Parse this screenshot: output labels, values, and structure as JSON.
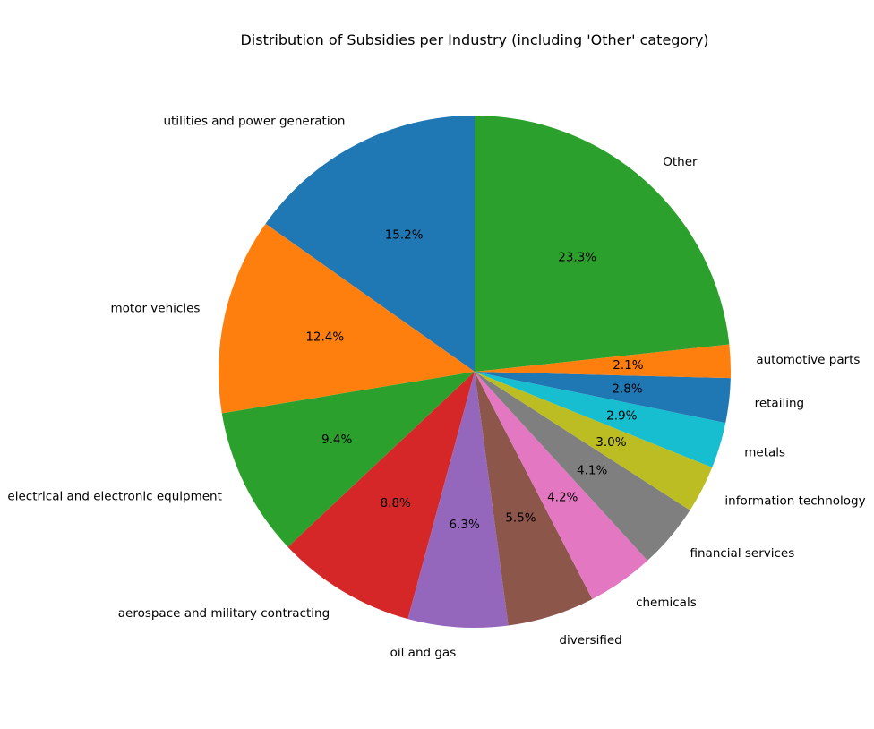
{
  "chart_data": {
    "type": "pie",
    "title": "Distribution of Subsidies per Industry (including 'Other' category)",
    "start_angle_deg": 90,
    "direction": "counterclockwise",
    "slices": [
      {
        "label": "utilities and power generation",
        "value": 15.2,
        "pct_text": "15.2%",
        "color": "#1f77b4"
      },
      {
        "label": "motor vehicles",
        "value": 12.4,
        "pct_text": "12.4%",
        "color": "#ff7f0e"
      },
      {
        "label": "electrical and electronic equipment",
        "value": 9.4,
        "pct_text": "9.4%",
        "color": "#2ca02c"
      },
      {
        "label": "aerospace and military contracting",
        "value": 8.8,
        "pct_text": "8.8%",
        "color": "#d62728"
      },
      {
        "label": "oil and gas",
        "value": 6.3,
        "pct_text": "6.3%",
        "color": "#9467bd"
      },
      {
        "label": "diversified",
        "value": 5.5,
        "pct_text": "5.5%",
        "color": "#8c564b"
      },
      {
        "label": "chemicals",
        "value": 4.2,
        "pct_text": "4.2%",
        "color": "#e377c2"
      },
      {
        "label": "financial services",
        "value": 4.1,
        "pct_text": "4.1%",
        "color": "#7f7f7f"
      },
      {
        "label": "information technology",
        "value": 3.0,
        "pct_text": "3.0%",
        "color": "#bcbd22"
      },
      {
        "label": "metals",
        "value": 2.9,
        "pct_text": "2.9%",
        "color": "#17becf"
      },
      {
        "label": "retailing",
        "value": 2.8,
        "pct_text": "2.8%",
        "color": "#1f77b4"
      },
      {
        "label": "automotive parts",
        "value": 2.1,
        "pct_text": "2.1%",
        "color": "#ff7f0e"
      },
      {
        "label": "Other",
        "value": 23.3,
        "pct_text": "23.3%",
        "color": "#2ca02c"
      }
    ]
  }
}
